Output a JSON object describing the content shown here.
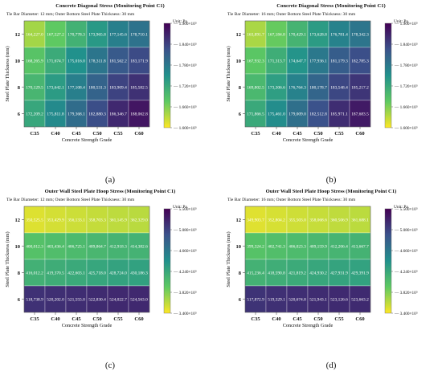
{
  "chart_data": [
    {
      "type": "heatmap",
      "panel_label": "(a)",
      "title": "Concrete Diagonal Stress (Monitoring Point C1)",
      "subtitle": "Tie Bar Diameter: 12 mm; Outer Bottom Steel Plate Thickness: 30 mm",
      "unit": "Unit: Pa",
      "xlabel": "Concrete Strength Grade",
      "ylabel": "Steel Plate Thickness (mm)",
      "x": [
        "C35",
        "C40",
        "C45",
        "C50",
        "C55",
        "C60"
      ],
      "y": [
        "12",
        "10",
        "8",
        "6"
      ],
      "cell_labels": [
        [
          "164,227.0",
          "167,527.2",
          "170,778.3",
          "173,965.8",
          "177,145.6",
          "178,710.1"
        ],
        [
          "168,265.9",
          "171,674.7",
          "175,016.0",
          "178,311.8",
          "181,562.2",
          "183,171.9"
        ],
        [
          "170,129.5",
          "173,642.1",
          "177,108.4",
          "180,531.3",
          "183,909.4",
          "185,582.5"
        ],
        [
          "172,209.2",
          "175,811.8",
          "179,368.1",
          "182,880.3",
          "186,346.7",
          "188,062.8"
        ]
      ],
      "values": [
        [
          164227.0,
          167527.2,
          170778.3,
          173965.8,
          177145.6,
          178710.1
        ],
        [
          168265.9,
          171674.7,
          175016.0,
          178311.8,
          181562.2,
          183171.9
        ],
        [
          170129.5,
          173642.1,
          177108.4,
          180531.3,
          183909.4,
          185582.5
        ],
        [
          172209.2,
          175811.8,
          179368.1,
          182880.3,
          186346.7,
          188062.8
        ]
      ],
      "colorbar": {
        "min": 160000,
        "max": 190000,
        "ticks": [
          {
            "v": 190000,
            "label": "1.900×10⁵"
          },
          {
            "v": 184000,
            "label": "1.840×10⁵"
          },
          {
            "v": 178000,
            "label": "1.780×10⁵"
          },
          {
            "v": 172000,
            "label": "1.720×10⁵"
          },
          {
            "v": 166000,
            "label": "1.660×10⁵"
          },
          {
            "v": 160000,
            "label": "1.600×10⁵"
          }
        ]
      }
    },
    {
      "type": "heatmap",
      "panel_label": "(b)",
      "title": "Concrete Diagonal Stress (Monitoring Point C1)",
      "subtitle": "Tie Bar Diameter: 16 mm; Outer Bottom Steel Plate Thickness: 30 mm",
      "unit": "Unit: Pa",
      "xlabel": "Concrete Strength Grade",
      "ylabel": "Steel Plate Thickness (mm)",
      "x": [
        "C35",
        "C40",
        "C45",
        "C50",
        "C55",
        "C60"
      ],
      "y": [
        "12",
        "10",
        "8",
        "6"
      ],
      "cell_labels": [
        [
          "163,891.7",
          "167,184.8",
          "170,429.1",
          "173,628.8",
          "176,781.4",
          "178,342.3"
        ],
        [
          "167,932.3",
          "171,313.7",
          "174,647.7",
          "177,936.1",
          "181,179.3",
          "182,785.3"
        ],
        [
          "169,802.5",
          "173,306.6",
          "176,764.3",
          "180,178.7",
          "183,548.4",
          "185,217.2"
        ],
        [
          "171,866.5",
          "175,461.0",
          "179,009.0",
          "182,512.8",
          "185,971.1",
          "187,683.5"
        ]
      ],
      "values": [
        [
          163891.7,
          167184.8,
          170429.1,
          173628.8,
          176781.4,
          178342.3
        ],
        [
          167932.3,
          171313.7,
          174647.7,
          177936.1,
          181179.3,
          182785.3
        ],
        [
          169802.5,
          173306.6,
          176764.3,
          180178.7,
          183548.4,
          185217.2
        ],
        [
          171866.5,
          175461.0,
          179009.0,
          182512.8,
          185971.1,
          187683.5
        ]
      ],
      "colorbar": {
        "min": 160000,
        "max": 190000,
        "ticks": [
          {
            "v": 190000,
            "label": "1.900×10⁵"
          },
          {
            "v": 184000,
            "label": "1.840×10⁵"
          },
          {
            "v": 178000,
            "label": "1.780×10⁵"
          },
          {
            "v": 172000,
            "label": "1.720×10⁵"
          },
          {
            "v": 166000,
            "label": "1.660×10⁵"
          },
          {
            "v": 160000,
            "label": "1.600×10⁵"
          }
        ]
      }
    },
    {
      "type": "heatmap",
      "panel_label": "(c)",
      "title": "Outer Wall Steel Plate Hoop Stress (Monitoring Point C1)",
      "subtitle": "Tie Bar Diameter: 12 mm; Outer Bottom Steel Plate Thickness: 30 mm",
      "unit": "Unit: Pa",
      "xlabel": "Concrete Strength Grade",
      "ylabel": "Steel Plate Thickness (mm)",
      "x": [
        "C35",
        "C40",
        "C45",
        "C50",
        "C55",
        "C60"
      ],
      "y": [
        "12",
        "10",
        "8",
        "6"
      ],
      "cell_labels": [
        [
          "350,525.5",
          "353,429.9",
          "356,133.1",
          "358,703.3",
          "361,145.9",
          "362,329.0"
        ],
        [
          "400,012.3",
          "403,436.4",
          "406,725.1",
          "409,864.7",
          "412,918.3",
          "414,382.6"
        ],
        [
          "416,012.2",
          "419,370.5",
          "422,603.1",
          "425,718.0",
          "428,724.0",
          "430,186.3"
        ],
        [
          "518,738.9",
          "520,202.0",
          "521,555.0",
          "522,830.4",
          "524,022.7",
          "524,563.0"
        ]
      ],
      "values": [
        [
          350525.5,
          353429.9,
          356133.1,
          358703.3,
          361145.9,
          362329.0
        ],
        [
          400012.3,
          403436.4,
          406725.1,
          409864.7,
          412918.3,
          414382.6
        ],
        [
          416012.2,
          419370.5,
          422603.1,
          425718.0,
          428724.0,
          430186.3
        ],
        [
          518738.9,
          520202.0,
          521555.0,
          522830.4,
          524022.7,
          524563.0
        ]
      ],
      "colorbar": {
        "min": 340000,
        "max": 550000,
        "ticks": [
          {
            "v": 550000,
            "label": "5.500×10⁵"
          },
          {
            "v": 508000,
            "label": "5.080×10⁵"
          },
          {
            "v": 466000,
            "label": "4.660×10⁵"
          },
          {
            "v": 424000,
            "label": "4.240×10⁵"
          },
          {
            "v": 382000,
            "label": "3.820×10⁵"
          },
          {
            "v": 340000,
            "label": "3.400×10⁵"
          }
        ]
      }
    },
    {
      "type": "heatmap",
      "panel_label": "(d)",
      "title": "Outer Wall Steel Plate Hoop Stress (Monitoring Point C1)",
      "subtitle": "Tie Bar Diameter: 16 mm; Outer Bottom Steel Plate Thickness: 30 mm",
      "unit": "Unit: Pa",
      "xlabel": "Concrete Strength Grade",
      "ylabel": "Steel Plate Thickness (mm)",
      "x": [
        "C35",
        "C40",
        "C45",
        "C50",
        "C55",
        "C60"
      ],
      "y": [
        "12",
        "10",
        "8",
        "6"
      ],
      "cell_labels": [
        [
          "349,903.7",
          "352,804.2",
          "355,503.0",
          "358,068.6",
          "360,506.9",
          "361,688.1"
        ],
        [
          "399,324.2",
          "402,741.3",
          "406,023.3",
          "409,159.9",
          "412,206.4",
          "413,667.7"
        ],
        [
          "415,236.4",
          "418,590.8",
          "421,819.2",
          "424,930.2",
          "427,931.9",
          "429,391.9"
        ],
        [
          "517,872.9",
          "519,329.1",
          "520,674.8",
          "521,943.1",
          "523,126.6",
          "523,663.2"
        ]
      ],
      "values": [
        [
          349903.7,
          352804.2,
          355503.0,
          358068.6,
          360506.9,
          361688.1
        ],
        [
          399324.2,
          402741.3,
          406023.3,
          409159.9,
          412206.4,
          413667.7
        ],
        [
          415236.4,
          418590.8,
          421819.2,
          424930.2,
          427931.9,
          429391.9
        ],
        [
          517872.9,
          519329.1,
          520674.8,
          521943.1,
          523126.6,
          523663.2
        ]
      ],
      "colorbar": {
        "min": 340000,
        "max": 550000,
        "ticks": [
          {
            "v": 550000,
            "label": "5.500×10⁵"
          },
          {
            "v": 508000,
            "label": "5.080×10⁵"
          },
          {
            "v": 466000,
            "label": "4.660×10⁵"
          },
          {
            "v": 424000,
            "label": "4.240×10⁵"
          },
          {
            "v": 382000,
            "label": "3.820×10⁵"
          },
          {
            "v": 340000,
            "label": "3.400×10⁵"
          }
        ]
      }
    }
  ],
  "colormap": [
    "#440154",
    "#3b528b",
    "#21918c",
    "#5ec962",
    "#fde725"
  ]
}
